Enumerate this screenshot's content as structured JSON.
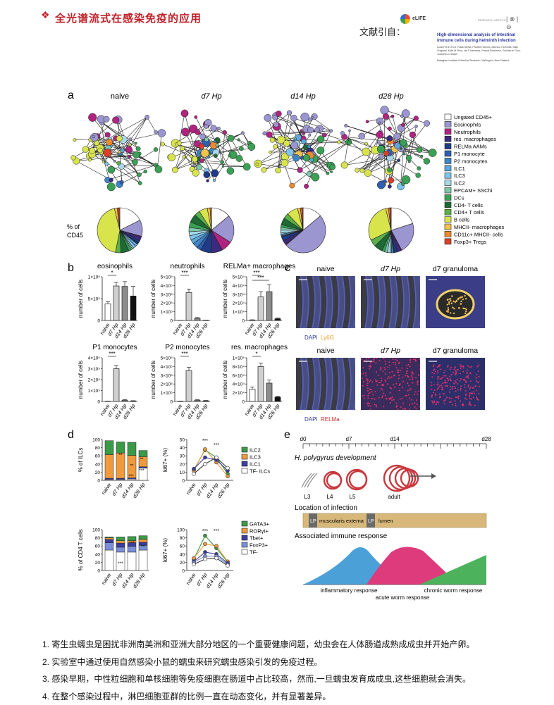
{
  "header": {
    "bullet": "❖",
    "title": "全光谱流式在感染免疫的应用",
    "cite_label": "文献引自："
  },
  "reference": {
    "logo_text": "eLIFE",
    "tag": "RESEARCH ARTICLE",
    "title_line1": "High-dimensional analysis of intestinal",
    "title_line2": "immune cells during helminth infection",
    "authors": "Lucia Ferrer-Font, Palak Mehta, Phoebe Harmos, Alfonso J Schmidt, Sally Chappell, Kylie M Price, Ian F Hermans, Franca Ronchese, Graham le Gros, Johannes U Mayer",
    "affiliation": "Malaghan Institute of Medical Research, Wellington, New Zealand"
  },
  "panel_a": {
    "letter": "a",
    "columns": [
      "naive",
      "d7 Hp",
      "d14 Hp",
      "d28 Hp"
    ],
    "pie_label_line1": "% of",
    "pie_label_line2": "CD45",
    "legend": [
      {
        "name": "Ungated CD45+",
        "color": "#ffffff"
      },
      {
        "name": "Eosinophils",
        "color": "#9b95d0"
      },
      {
        "name": "Neutrophils",
        "color": "#b0247f"
      },
      {
        "name": "res. macrophages",
        "color": "#3b2a7e"
      },
      {
        "name": "RELMa AAMs",
        "color": "#1f3b88"
      },
      {
        "name": "P1 monocyte",
        "color": "#2f5fb0"
      },
      {
        "name": "P2 monocytes",
        "color": "#3f84c6"
      },
      {
        "name": "ILC1",
        "color": "#5ea7dc"
      },
      {
        "name": "ILC3",
        "color": "#7ec4e8"
      },
      {
        "name": "ILC2",
        "color": "#a7d8ea"
      },
      {
        "name": "EPCAM+ SSChi",
        "color": "#7dc7a6"
      },
      {
        "name": "DCs",
        "color": "#3aa055"
      },
      {
        "name": "CD4- T cells",
        "color": "#1d6a34"
      },
      {
        "name": "CD4+ T cells",
        "color": "#5cb04a"
      },
      {
        "name": "B cells",
        "color": "#d8e44c"
      },
      {
        "name": "MHCII- macrophages",
        "color": "#f2c24f"
      },
      {
        "name": "CD11c+ MHCII- cells",
        "color": "#ee8a2c"
      },
      {
        "name": "Foxp3+ Tregs",
        "color": "#d8402a"
      }
    ]
  },
  "chart_data": [
    {
      "type": "pie",
      "panel": "a",
      "title": "naive",
      "labels": [
        "Ungated CD45+",
        "Eosinophils",
        "Neutrophils",
        "res. macrophages",
        "RELMa AAMs",
        "P1 monocyte",
        "P2 monocytes",
        "ILC1",
        "ILC3",
        "ILC2",
        "EPCAM+ SSChi",
        "DCs",
        "CD4- T cells",
        "CD4+ T cells",
        "B cells",
        "MHCII- macrophages",
        "CD11c+ MHCII- cells",
        "Foxp3+ Tregs"
      ],
      "values": [
        18,
        12,
        0.5,
        3,
        2,
        0.5,
        0.5,
        2,
        2,
        1,
        1,
        2,
        6,
        4,
        44,
        2,
        1,
        1
      ]
    },
    {
      "type": "pie",
      "panel": "a",
      "title": "d7 Hp",
      "labels": [
        "Ungated CD45+",
        "Eosinophils",
        "Neutrophils",
        "res. macrophages",
        "RELMa AAMs",
        "P1 monocyte",
        "P2 monocytes",
        "ILC1",
        "ILC3",
        "ILC2",
        "EPCAM+ SSChi",
        "DCs",
        "CD4- T cells",
        "CD4+ T cells",
        "B cells",
        "MHCII- macrophages",
        "CD11c+ MHCII- cells",
        "Foxp3+ Tregs"
      ],
      "values": [
        14,
        20,
        8,
        8,
        8,
        3,
        4,
        3,
        3,
        3,
        3,
        4,
        6,
        4,
        6,
        2,
        1,
        0
      ]
    },
    {
      "type": "pie",
      "panel": "a",
      "title": "d14 Hp",
      "labels": [
        "Ungated CD45+",
        "Eosinophils",
        "Neutrophils",
        "res. macrophages",
        "RELMa AAMs",
        "P1 monocyte",
        "P2 monocytes",
        "ILC1",
        "ILC3",
        "ILC2",
        "EPCAM+ SSChi",
        "DCs",
        "CD4- T cells",
        "CD4+ T cells",
        "B cells",
        "MHCII- macrophages",
        "CD11c+ MHCII- cells",
        "Foxp3+ Tregs"
      ],
      "values": [
        14,
        50,
        0.5,
        3,
        3,
        0.5,
        0.5,
        1,
        1,
        2,
        2,
        2,
        5,
        4,
        8,
        2,
        1,
        1
      ]
    },
    {
      "type": "pie",
      "panel": "a",
      "title": "d28 Hp",
      "labels": [
        "Ungated CD45+",
        "Eosinophils",
        "Neutrophils",
        "res. macrophages",
        "RELMa AAMs",
        "P1 monocyte",
        "P2 monocytes",
        "ILC1",
        "ILC3",
        "ILC2",
        "EPCAM+ SSChi",
        "DCs",
        "CD4- T cells",
        "CD4+ T cells",
        "B cells",
        "MHCII- macrophages",
        "CD11c+ MHCII- cells",
        "Foxp3+ Tregs"
      ],
      "values": [
        20,
        22,
        0.5,
        3,
        2,
        0.5,
        0.5,
        1,
        1,
        2,
        2,
        2,
        6,
        5,
        28,
        2,
        1,
        1
      ]
    },
    {
      "type": "bar",
      "panel": "b",
      "title": "eosinophils",
      "ylabel": "number of cells",
      "categories": [
        "naive",
        "d7 Hp",
        "d14 Hp",
        "d28 Hp"
      ],
      "values": [
        380000,
        790000,
        780000,
        560000
      ],
      "errors": [
        50000,
        80000,
        110000,
        220000
      ],
      "colors": [
        "#ffffff",
        "#d0d0d0",
        "#8c8c8c",
        "#111111"
      ],
      "ylim": [
        0,
        1000000
      ],
      "yticks": [
        "0",
        "5×10⁵",
        "1×10⁶"
      ],
      "yticks_values": [
        0,
        500000,
        1000000
      ],
      "sig": [
        {
          "from": 0,
          "to": 1,
          "label": "*"
        }
      ]
    },
    {
      "type": "bar",
      "panel": "b",
      "title": "neutrophils",
      "ylabel": "number of cells",
      "categories": [
        "naive",
        "d7 Hp",
        "d14 Hp",
        "d28 Hp"
      ],
      "values": [
        1000,
        320000,
        25000,
        3000
      ],
      "errors": [
        500,
        40000,
        8000,
        1000
      ],
      "colors": [
        "#ffffff",
        "#d0d0d0",
        "#8c8c8c",
        "#111111"
      ],
      "ylim": [
        0,
        500000
      ],
      "yticks": [
        "0",
        "1×10⁵",
        "2×10⁵",
        "3×10⁵",
        "4×10⁵",
        "5×10⁵"
      ],
      "yticks_values": [
        0,
        100000,
        200000,
        300000,
        400000,
        500000
      ],
      "sig": [
        {
          "from": 0,
          "to": 1,
          "label": "***"
        }
      ]
    },
    {
      "type": "bar",
      "panel": "b",
      "title": "RELMa+ macrophages",
      "ylabel": "number of cells",
      "categories": [
        "naive",
        "d7 Hp",
        "d14 Hp",
        "d28 Hp"
      ],
      "values": [
        500,
        27000,
        33000,
        2000
      ],
      "errors": [
        300,
        6000,
        8000,
        1000
      ],
      "colors": [
        "#ffffff",
        "#d0d0d0",
        "#8c8c8c",
        "#111111"
      ],
      "ylim": [
        0,
        50000
      ],
      "yticks": [
        "0",
        "1×10⁴",
        "2×10⁴",
        "3×10⁴",
        "4×10⁴",
        "5×10⁴"
      ],
      "yticks_values": [
        0,
        10000,
        20000,
        30000,
        40000,
        50000
      ],
      "sig": [
        {
          "from": 0,
          "to": 1,
          "label": "***"
        },
        {
          "from": 0,
          "to": 2,
          "label": "***"
        }
      ]
    },
    {
      "type": "bar",
      "panel": "b",
      "title": "P1 monocytes",
      "ylabel": "number of cells",
      "categories": [
        "naive",
        "d7 Hp",
        "d14 Hp",
        "d28 Hp"
      ],
      "values": [
        2000,
        300000,
        12000,
        5000
      ],
      "errors": [
        1000,
        30000,
        4000,
        2000
      ],
      "colors": [
        "#ffffff",
        "#d0d0d0",
        "#8c8c8c",
        "#111111"
      ],
      "ylim": [
        0,
        400000
      ],
      "yticks": [
        "0",
        "1×10⁵",
        "2×10⁵",
        "3×10⁵",
        "4×10⁵"
      ],
      "yticks_values": [
        0,
        100000,
        200000,
        300000,
        400000
      ],
      "sig": [
        {
          "from": 0,
          "to": 1,
          "label": "***"
        }
      ]
    },
    {
      "type": "bar",
      "panel": "b",
      "title": "P2 monocytes",
      "ylabel": "number of cells",
      "categories": [
        "naive",
        "d7 Hp",
        "d14 Hp",
        "d28 Hp"
      ],
      "values": [
        3000,
        355000,
        15000,
        8000
      ],
      "errors": [
        1000,
        35000,
        5000,
        3000
      ],
      "colors": [
        "#ffffff",
        "#d0d0d0",
        "#8c8c8c",
        "#111111"
      ],
      "ylim": [
        0,
        500000
      ],
      "yticks": [
        "0",
        "1×10⁵",
        "2×10⁵",
        "3×10⁵",
        "4×10⁵",
        "5×10⁵"
      ],
      "yticks_values": [
        0,
        100000,
        200000,
        300000,
        400000,
        500000
      ],
      "sig": [
        {
          "from": 0,
          "to": 1,
          "label": "***"
        }
      ]
    },
    {
      "type": "bar",
      "panel": "b",
      "title": "res. macrophages",
      "ylabel": "number of cells",
      "categories": [
        "naive",
        "d7 Hp",
        "d14 Hp",
        "d28 Hp"
      ],
      "values": [
        28000,
        80000,
        42000,
        10000
      ],
      "errors": [
        5000,
        8000,
        7000,
        2000
      ],
      "colors": [
        "#ffffff",
        "#d0d0d0",
        "#8c8c8c",
        "#111111"
      ],
      "ylim": [
        0,
        100000
      ],
      "yticks": [
        "0",
        "2×10⁴",
        "4×10⁴",
        "6×10⁴",
        "8×10⁴",
        "1×10⁵"
      ],
      "yticks_values": [
        0,
        20000,
        40000,
        60000,
        80000,
        100000
      ],
      "sig": [
        {
          "from": 0,
          "to": 1,
          "label": "*"
        }
      ]
    },
    {
      "type": "bar",
      "stacked": true,
      "panel": "d",
      "ylabel": "% of ILCs",
      "categories": [
        "naive",
        "d7 Hp",
        "d14 Hp",
        "d28 Hp"
      ],
      "series": [
        {
          "name": "TF- ILCs",
          "color": "#ffffff",
          "values": [
            2,
            2,
            3,
            30
          ]
        },
        {
          "name": "ILC1",
          "color": "#3b3ea0",
          "values": [
            3,
            3,
            3,
            3
          ]
        },
        {
          "name": "ILC3",
          "color": "#f09a3e",
          "values": [
            58,
            62,
            55,
            25
          ]
        },
        {
          "name": "ILC2",
          "color": "#3a9a48",
          "values": [
            34,
            27,
            32,
            15
          ]
        }
      ],
      "ylim": [
        0,
        100
      ],
      "yticks": [
        "0",
        "20",
        "40",
        "60",
        "80",
        "100"
      ],
      "yticks_values": [
        0,
        20,
        40,
        60,
        80,
        100
      ]
    },
    {
      "type": "line",
      "panel": "d",
      "ylabel": "ki67+ (%)",
      "x": [
        "naive",
        "d7 Hp",
        "d14 Hp",
        "d28 Hp"
      ],
      "series": [
        {
          "name": "ILC2",
          "color": "#3a9a48",
          "values": [
            13,
            37,
            28,
            8
          ]
        },
        {
          "name": "ILC3",
          "color": "#f09a3e",
          "values": [
            12,
            38,
            22,
            5
          ]
        },
        {
          "name": "ILC1",
          "color": "#3b3ea0",
          "values": [
            14,
            28,
            25,
            12
          ]
        },
        {
          "name": "TF- ILCs",
          "color": "#ffffff",
          "values": [
            8,
            20,
            28,
            15
          ]
        }
      ],
      "ylim": [
        0,
        50
      ],
      "yticks": [
        "0",
        "10",
        "20",
        "30",
        "40",
        "50"
      ],
      "yticks_values": [
        0,
        10,
        20,
        30,
        40,
        50
      ]
    },
    {
      "type": "bar",
      "stacked": true,
      "panel": "d",
      "ylabel": "% of CD4 T cells",
      "categories": [
        "naive",
        "d7 Hp",
        "d14 Hp",
        "d28 Hp"
      ],
      "series": [
        {
          "name": "TF-",
          "color": "#ffffff",
          "values": [
            50,
            45,
            45,
            50
          ]
        },
        {
          "name": "FoxP3+",
          "color": "#7a8fd8",
          "values": [
            18,
            12,
            14,
            12
          ]
        },
        {
          "name": "Tbet+",
          "color": "#3b3ea0",
          "values": [
            8,
            10,
            9,
            7
          ]
        },
        {
          "name": "RORγt+",
          "color": "#f09a3e",
          "values": [
            4,
            6,
            5,
            7
          ]
        },
        {
          "name": "GATA3+",
          "color": "#3a9a48",
          "values": [
            2,
            9,
            10,
            9
          ]
        }
      ],
      "ylim": [
        0,
        100
      ],
      "yticks": [
        "0",
        "20",
        "40",
        "60",
        "80",
        "100"
      ],
      "yticks_values": [
        0,
        20,
        40,
        60,
        80,
        100
      ]
    },
    {
      "type": "line",
      "panel": "d",
      "ylabel": "ki67+ (%)",
      "x": [
        "naive",
        "d7 Hp",
        "d14 Hp",
        "d28 Hp"
      ],
      "series": [
        {
          "name": "GATA3+",
          "color": "#3a9a48",
          "values": [
            28,
            85,
            55,
            20
          ]
        },
        {
          "name": "RORγt+",
          "color": "#f09a3e",
          "values": [
            30,
            65,
            60,
            22
          ]
        },
        {
          "name": "Tbet+",
          "color": "#3b3ea0",
          "values": [
            22,
            45,
            40,
            18
          ]
        },
        {
          "name": "FoxP3+",
          "color": "#7a8fd8",
          "values": [
            20,
            35,
            35,
            15
          ]
        },
        {
          "name": "TF-",
          "color": "#ffffff",
          "values": [
            15,
            28,
            30,
            12
          ]
        }
      ],
      "ylim": [
        0,
        100
      ],
      "yticks": [
        "0",
        "20",
        "40",
        "60",
        "80",
        "100"
      ],
      "yticks_values": [
        0,
        20,
        40,
        60,
        80,
        100
      ]
    }
  ],
  "panel_b": {
    "letter": "b",
    "sig_top_labels": [
      "***",
      "***"
    ]
  },
  "panel_c": {
    "letter": "c",
    "row1_titles": [
      "naive",
      "d7 Hp",
      "d7 granuloma"
    ],
    "row1_legend": [
      "DAPI",
      "Ly6G"
    ],
    "row2_titles": [
      "naive",
      "d7 Hp",
      "d7 granuloma"
    ],
    "row2_legend": [
      "DAPI",
      "RELMa"
    ]
  },
  "panel_d": {
    "letter": "d",
    "ilc_sig_marks": [
      "**",
      "**",
      "***",
      "**",
      "***"
    ],
    "ilc_ki67_sig": [
      "***",
      "***"
    ],
    "cd4_sig_marks": [
      "***",
      "***",
      "***"
    ],
    "cd4_ki67_sig": [
      "***",
      "***"
    ]
  },
  "panel_e": {
    "letter": "e",
    "timeline_labels": [
      "d0",
      "d7",
      "d14",
      "d28"
    ],
    "development_title": "H. polygyrus development",
    "stages": [
      "L3",
      "L4",
      "L5",
      "adult"
    ],
    "location_title": "Location of infection",
    "location_labels": [
      "LP",
      "muscularis externa",
      "LP",
      "lumen"
    ],
    "response_title": "Associated immune response",
    "responses": [
      "inflammatory response",
      "acute worm response",
      "chronic worm response"
    ]
  },
  "notes": [
    "1. 寄生虫蠕虫是困扰非洲南美洲和亚洲大部分地区的一个重要健康问题，幼虫会在人体肠道成熟成成虫并开始产卵。",
    "2. 实验室中通过使用自然感染小鼠的蠕虫来研究蠕虫感染引发的免疫过程。",
    "3. 感染早期，中性粒细胞和单核细胞等免疫细胞在肠道中占比较高，然而,一旦蠕虫发育成成虫,这些细胞就会消失。",
    "4. 在整个感染过程中，淋巴细胞亚群的比例一直在动态变化，并有显著差异。"
  ]
}
